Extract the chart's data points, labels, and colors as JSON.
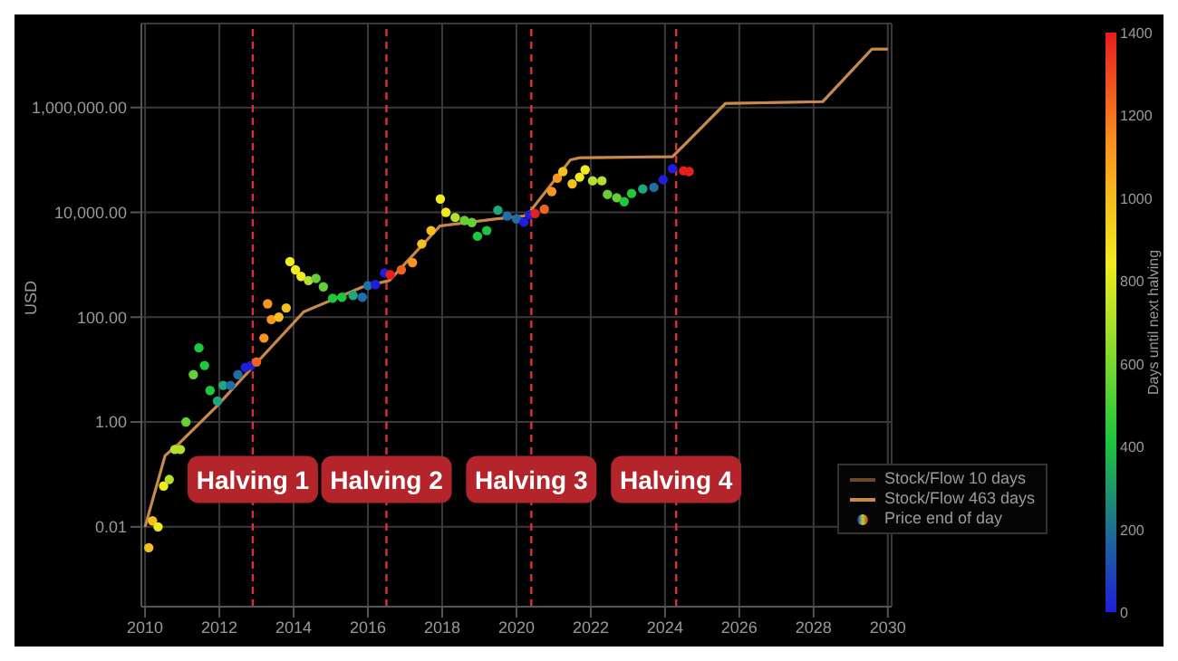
{
  "chart_data": {
    "type": "scatter",
    "xlabel": null,
    "ylabel": "USD",
    "clabel": "Days until next halving",
    "log": "y",
    "grid": true,
    "legend": "bottom right",
    "xlim": [
      2009.9,
      2030.1
    ],
    "xticks": [
      2010,
      2012,
      2014,
      2016,
      2018,
      2020,
      2022,
      2024,
      2026,
      2028,
      2030
    ],
    "ylim": [
      0.0003,
      40000000
    ],
    "yticks": [
      {
        "value": 0.01,
        "label": "0.01"
      },
      {
        "value": 1,
        "label": "1.00"
      },
      {
        "value": 100,
        "label": "100.00"
      },
      {
        "value": 10000,
        "label": "10,000.00"
      },
      {
        "value": 1000000,
        "label": "1,000,000.00"
      }
    ],
    "clim": [
      0,
      1400
    ],
    "cticks": [
      0,
      200,
      400,
      600,
      800,
      1000,
      1200,
      1400
    ],
    "ref_lines": [
      {
        "axis": "x",
        "value": 2012.9,
        "color": "#d8313a",
        "line_style": "dashed"
      },
      {
        "axis": "x",
        "value": 2016.5,
        "color": "#d8313a",
        "line_style": "dashed"
      },
      {
        "axis": "x",
        "value": 2020.4,
        "color": "#d8313a",
        "line_style": "dashed"
      },
      {
        "axis": "x",
        "value": 2024.3,
        "color": "#d8313a",
        "line_style": "dashed"
      }
    ],
    "annotations": [
      {
        "text": "Halving 1",
        "x": 2012.9,
        "y": 0.08
      },
      {
        "text": "Halving 2",
        "x": 2016.5,
        "y": 0.08
      },
      {
        "text": "Halving 3",
        "x": 2020.4,
        "y": 0.08
      },
      {
        "text": "Halving 4",
        "x": 2024.3,
        "y": 0.08
      }
    ],
    "series": [
      {
        "name": "Stock/Flow 10 days",
        "type": "line",
        "color": "#6b4a2a",
        "x": [
          2010.0,
          2010.54,
          2010.9,
          2011.93,
          2012.58,
          2014.08,
          2014.26,
          2015.87,
          2016.58,
          2017.94,
          2019.45,
          2020.2,
          2020.38,
          2021.45,
          2021.7,
          2024.2,
          2025.63,
          2028.25,
          2029.57,
          2030.0
        ],
        "values": [
          0.01,
          0.23,
          0.38,
          2,
          6.4,
          90,
          125,
          380,
          500,
          5500,
          7500,
          8500,
          10700,
          100000,
          110000,
          115000,
          1200000,
          1300000,
          13000000,
          13000000
        ]
      },
      {
        "name": "Stock/Flow 463 days",
        "type": "line",
        "color": "#c8894a",
        "x": [
          2010.0,
          2010.54,
          2010.9,
          2011.93,
          2012.58,
          2014.08,
          2014.26,
          2015.87,
          2016.58,
          2017.94,
          2019.45,
          2020.2,
          2020.38,
          2021.45,
          2021.7,
          2024.2,
          2025.63,
          2028.25,
          2029.57,
          2030.0
        ],
        "values": [
          0.01,
          0.23,
          0.38,
          2,
          6.4,
          90,
          125,
          380,
          500,
          5500,
          7500,
          8500,
          10700,
          100000,
          110000,
          115000,
          1200000,
          1300000,
          13000000,
          13000000
        ]
      },
      {
        "name": "Price end of day",
        "x": [
          2010.1,
          2010.2,
          2010.35,
          2010.5,
          2010.65,
          2010.8,
          2010.95,
          2011.1,
          2011.3,
          2011.45,
          2011.6,
          2011.75,
          2011.95,
          2012.1,
          2012.3,
          2012.5,
          2012.7,
          2012.85,
          2013.0,
          2013.2,
          2013.3,
          2013.4,
          2013.6,
          2013.8,
          2013.9,
          2014.05,
          2014.2,
          2014.4,
          2014.6,
          2014.8,
          2015.05,
          2015.3,
          2015.6,
          2015.85,
          2016.0,
          2016.2,
          2016.45,
          2016.6,
          2016.9,
          2017.2,
          2017.45,
          2017.7,
          2017.95,
          2018.1,
          2018.35,
          2018.6,
          2018.8,
          2018.95,
          2019.2,
          2019.5,
          2019.75,
          2020.0,
          2020.2,
          2020.35,
          2020.5,
          2020.75,
          2020.95,
          2021.1,
          2021.25,
          2021.5,
          2021.7,
          2021.85,
          2022.05,
          2022.3,
          2022.45,
          2022.7,
          2022.9,
          2023.1,
          2023.4,
          2023.7,
          2023.95,
          2024.2,
          2024.5,
          2024.65
        ],
        "values": [
          0.004,
          0.013,
          0.01,
          0.06,
          0.08,
          0.3,
          0.3,
          1,
          8,
          26,
          12,
          4,
          2.5,
          5,
          5,
          8,
          11,
          12,
          14,
          40,
          180,
          90,
          100,
          150,
          1150,
          800,
          600,
          500,
          550,
          380,
          230,
          240,
          260,
          240,
          400,
          420,
          700,
          650,
          800,
          1100,
          2500,
          4500,
          18000,
          10000,
          8000,
          7000,
          6400,
          3500,
          4500,
          11000,
          8500,
          7500,
          6500,
          9000,
          9500,
          11500,
          25000,
          45000,
          60000,
          35000,
          47000,
          65000,
          40000,
          40000,
          22000,
          19000,
          16000,
          23000,
          28000,
          30000,
          42000,
          68000,
          62000,
          60000
        ],
        "colors": [
          "#f5c01e",
          "#f5c01e",
          "#f0eb1e",
          "#f0eb1e",
          "#b4de30",
          "#b4de30",
          "#b4de30",
          "#64d036",
          "#64d036",
          "#1ec83c",
          "#1ec83c",
          "#1ec83c",
          "#1ea87a",
          "#1ea87a",
          "#1e6eaa",
          "#1e6eaa",
          "#1e1edc",
          "#1e1edc",
          "#f0641e",
          "#fa961e",
          "#fa961e",
          "#fa961e",
          "#f5c01e",
          "#f5c01e",
          "#f0eb1e",
          "#f0eb1e",
          "#f0eb1e",
          "#b4de30",
          "#64d036",
          "#64d036",
          "#1ec83c",
          "#1ec83c",
          "#1ea87a",
          "#1e6eaa",
          "#1e6eaa",
          "#1e1edc",
          "#1e1edc",
          "#e61e1e",
          "#f0641e",
          "#fa961e",
          "#f5c01e",
          "#f5c01e",
          "#f0eb1e",
          "#f0eb1e",
          "#b4de30",
          "#64d036",
          "#64d036",
          "#1ec83c",
          "#1ec83c",
          "#1ea87a",
          "#1e6eaa",
          "#1e6eaa",
          "#1e1edc",
          "#1e1edc",
          "#e61e1e",
          "#f0641e",
          "#fa961e",
          "#fa961e",
          "#f5c01e",
          "#f5c01e",
          "#f0eb1e",
          "#f0eb1e",
          "#b4de30",
          "#b4de30",
          "#64d036",
          "#64d036",
          "#1ec83c",
          "#1ec83c",
          "#1ea87a",
          "#1e6eaa",
          "#1e1edc",
          "#1e1edc",
          "#e61e1e",
          "#e61e1e"
        ]
      }
    ]
  }
}
